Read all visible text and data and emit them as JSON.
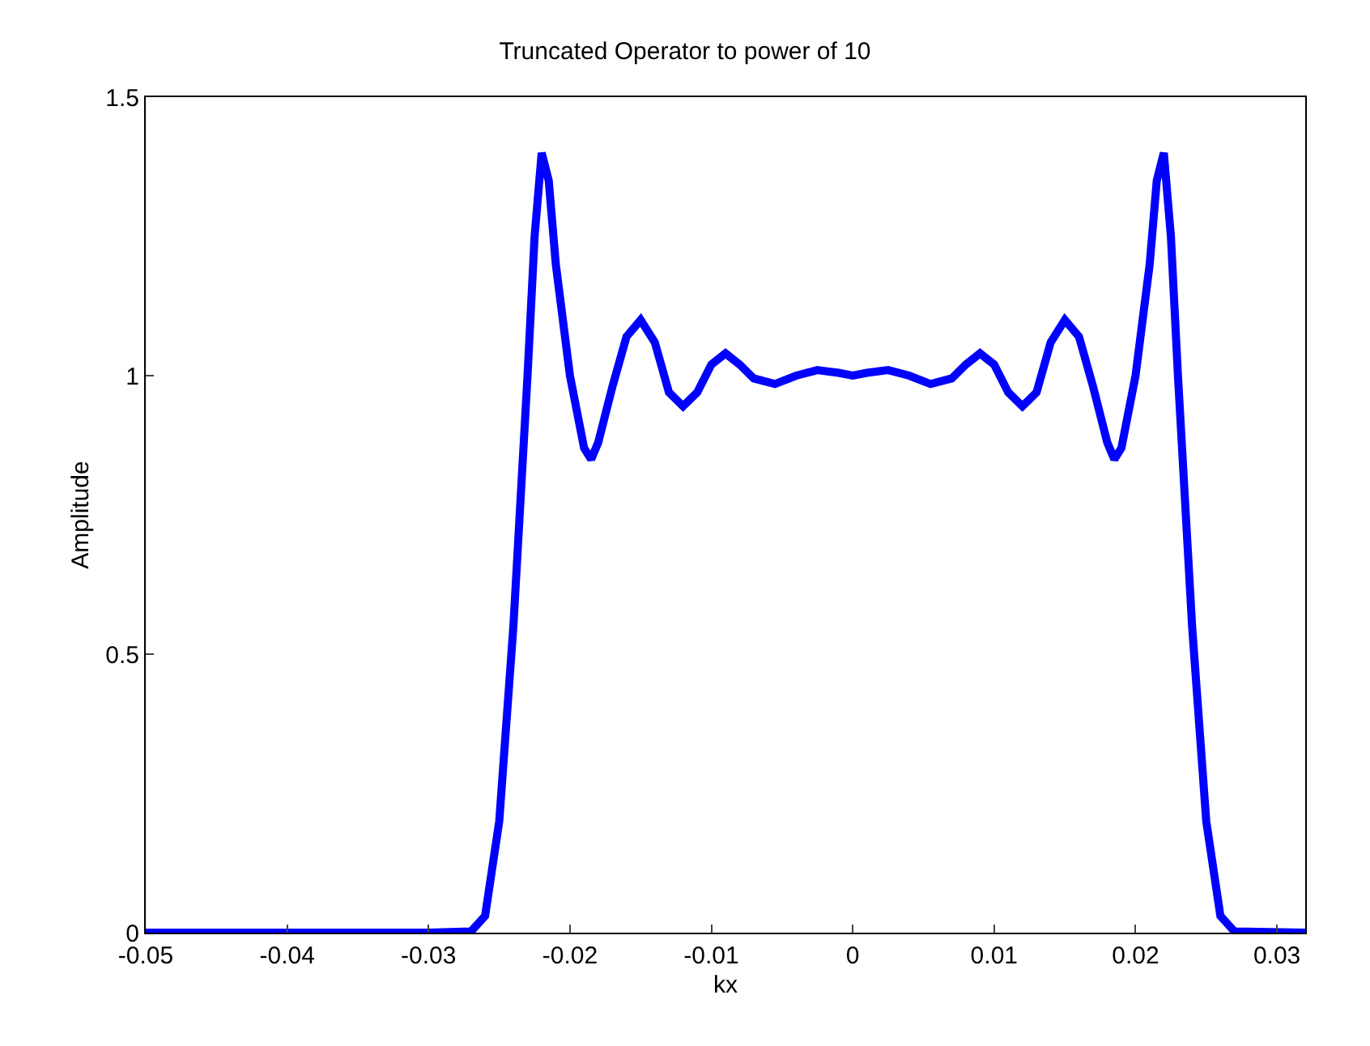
{
  "chart_data": {
    "type": "line",
    "title": "Truncated Operator to power of 10",
    "xlabel": "kx",
    "ylabel": "Amplitude",
    "x": [
      -0.05,
      -0.03,
      -0.027,
      -0.026,
      -0.025,
      -0.024,
      -0.023,
      -0.0225,
      -0.022,
      -0.0215,
      -0.021,
      -0.02,
      -0.019,
      -0.0185,
      -0.018,
      -0.017,
      -0.016,
      -0.015,
      -0.014,
      -0.013,
      -0.012,
      -0.011,
      -0.01,
      -0.009,
      -0.008,
      -0.007,
      -0.0055,
      -0.004,
      -0.0025,
      -0.001,
      0,
      0.001,
      0.0025,
      0.004,
      0.0055,
      0.007,
      0.008,
      0.009,
      0.01,
      0.011,
      0.012,
      0.013,
      0.014,
      0.015,
      0.016,
      0.017,
      0.018,
      0.0185,
      0.019,
      0.02,
      0.021,
      0.0215,
      0.022,
      0.0225,
      0.023,
      0.024,
      0.025,
      0.026,
      0.027,
      0.032
    ],
    "series": [
      {
        "color": "#0000ff",
        "values": [
          0,
          0,
          0.002,
          0.03,
          0.2,
          0.55,
          1.0,
          1.25,
          1.4,
          1.35,
          1.2,
          1.0,
          0.87,
          0.85,
          0.88,
          0.98,
          1.07,
          1.1,
          1.06,
          0.97,
          0.945,
          0.97,
          1.02,
          1.04,
          1.02,
          0.995,
          0.985,
          1.0,
          1.01,
          1.005,
          1.0,
          1.005,
          1.01,
          1.0,
          0.985,
          0.995,
          1.02,
          1.04,
          1.02,
          0.97,
          0.945,
          0.97,
          1.06,
          1.1,
          1.07,
          0.98,
          0.88,
          0.85,
          0.87,
          1.0,
          1.2,
          1.35,
          1.4,
          1.25,
          1.0,
          0.55,
          0.2,
          0.03,
          0.002,
          0
        ]
      }
    ],
    "xlim": [
      -0.05,
      0.032
    ],
    "xticks": [
      -0.05,
      -0.04,
      -0.03,
      -0.02,
      -0.01,
      0,
      0.01,
      0.02,
      0.03
    ],
    "ylim": [
      0,
      1.5
    ],
    "yticks": [
      0,
      0.5,
      1,
      1.5
    ],
    "legend": false,
    "marker": "none",
    "line_style": "solid"
  }
}
